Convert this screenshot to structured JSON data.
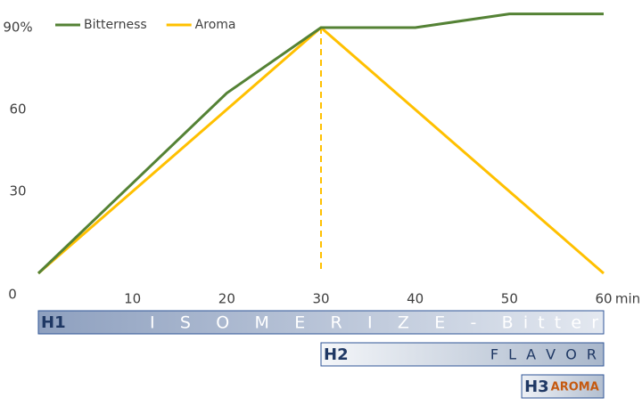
{
  "chart_data": {
    "type": "line",
    "xlim": [
      0,
      60
    ],
    "ylim": [
      0,
      100
    ],
    "xticks": [
      0,
      10,
      20,
      30,
      40,
      50,
      60
    ],
    "yticks": [
      {
        "value": 90,
        "label": "90%"
      },
      60,
      30
    ],
    "x_unit": "min",
    "legend": "top-left",
    "series": [
      {
        "name": "Bitterness",
        "color": "#548235",
        "x": [
          0,
          20,
          30,
          40,
          50,
          60
        ],
        "values": [
          0,
          66,
          90,
          90,
          95,
          95
        ]
      },
      {
        "name": "Aroma",
        "color": "#ffc000",
        "x": [
          0,
          30,
          60
        ],
        "values": [
          0,
          90,
          0
        ]
      }
    ],
    "marker_line": {
      "x": 30,
      "color": "#ffc000"
    },
    "phases": [
      {
        "label": "H1",
        "text": "I S O M E R I Z E  -  Bitter",
        "start": 0,
        "end": 60
      },
      {
        "label": "H2",
        "text": "F L A V O R",
        "start": 30,
        "end": 60
      },
      {
        "label": "H3",
        "text": "AROMA",
        "start": 51.3,
        "end": 60
      }
    ]
  }
}
